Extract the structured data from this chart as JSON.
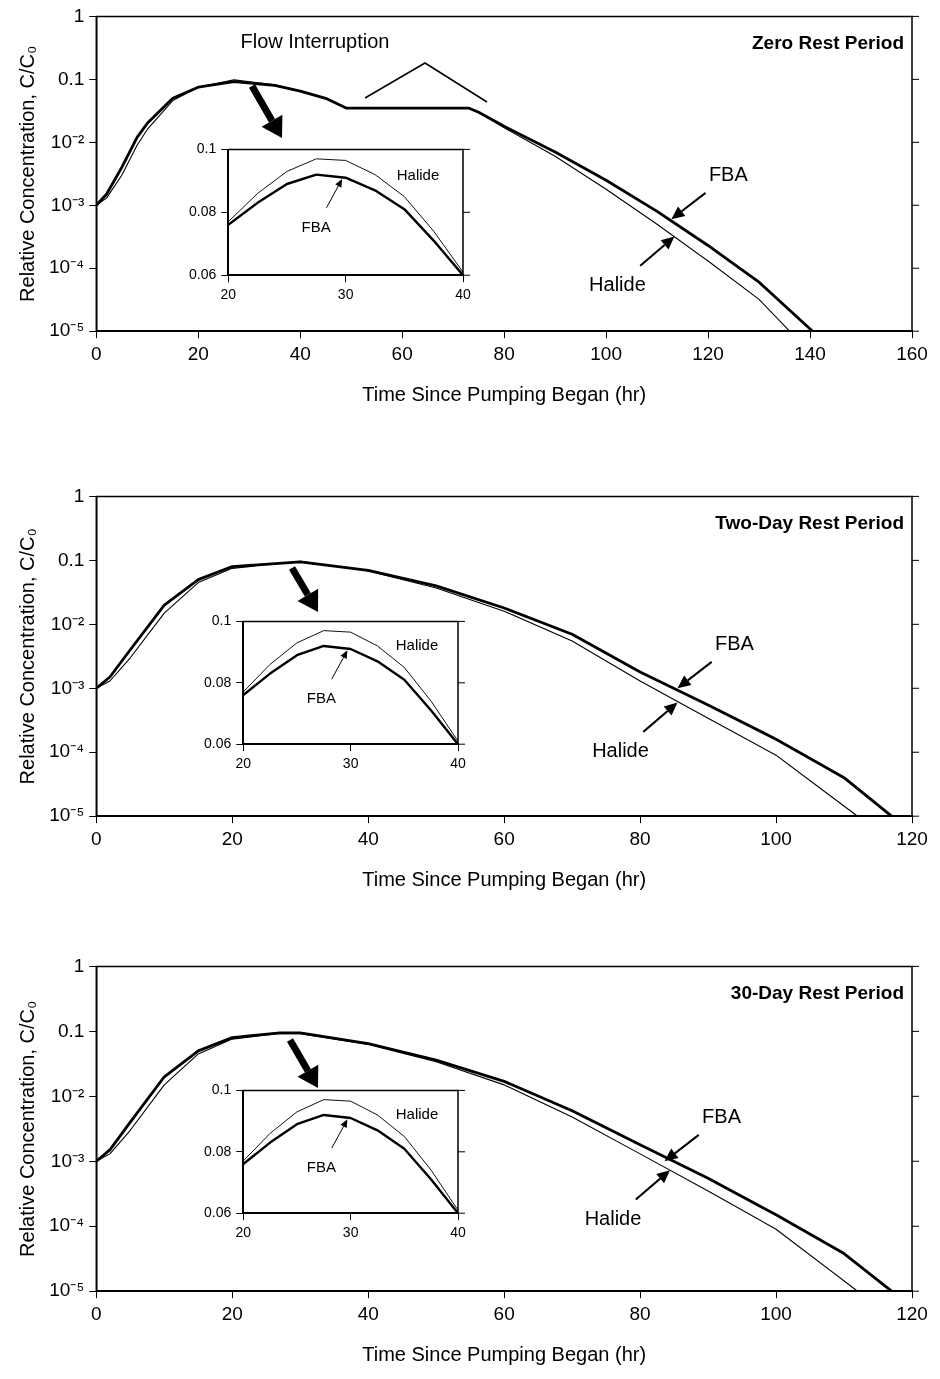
{
  "chart_data": [
    {
      "type": "line",
      "title": "Zero Rest Period",
      "xlabel": "Time Since Pumping Began (hr)",
      "ylabel": "Relative Concentration, C/C₀",
      "log": "y",
      "grid": false,
      "legend": false,
      "xlim": [
        0,
        160
      ],
      "xticks": [
        0,
        20,
        40,
        60,
        80,
        100,
        120,
        140,
        160
      ],
      "ylim": [
        1e-05,
        1
      ],
      "yticks": [
        1,
        0.1,
        {
          "value": 0.01,
          "label": "10⁻²"
        },
        {
          "value": 0.001,
          "label": "10⁻³"
        },
        {
          "value": 0.0001,
          "label": "10⁻⁴"
        },
        {
          "value": 1e-05,
          "label": "10⁻⁵"
        }
      ],
      "series": [
        {
          "color": "#000000",
          "x": [
            0,
            2,
            5,
            8,
            10,
            15,
            20,
            27,
            35,
            40,
            45,
            49,
            73,
            75,
            80,
            90,
            100,
            110,
            120,
            130,
            140.5
          ],
          "values": [
            0.001,
            0.0015,
            0.004,
            0.012,
            0.02,
            0.05,
            0.075,
            0.092,
            0.08,
            0.065,
            0.05,
            0.035,
            0.035,
            0.03,
            0.018,
            0.007,
            0.0025,
            0.0008,
            0.00023,
            6e-05,
            1e-05
          ]
        },
        {
          "color": "#000000",
          "x": [
            0,
            2,
            5,
            8,
            10,
            15,
            20,
            27,
            35,
            40,
            45,
            49,
            73,
            75,
            80,
            90,
            100,
            110,
            120,
            130,
            136
          ],
          "values": [
            0.001,
            0.0013,
            0.003,
            0.009,
            0.016,
            0.046,
            0.075,
            0.098,
            0.082,
            0.066,
            0.05,
            0.035,
            0.035,
            0.03,
            0.017,
            0.006,
            0.0018,
            0.0005,
            0.00013,
            3.2e-05,
            1e-05
          ]
        }
      ],
      "annotations": [
        "Flow Interruption",
        {
          "text": "FBA",
          "x": 112.8,
          "y": 0.0006
        },
        {
          "text": "Halide",
          "x": 113.4,
          "y": 0.00032
        }
      ]
    },
    {
      "type": "line",
      "grid": false,
      "legend": false,
      "xlim": [
        20,
        40
      ],
      "xticks": [
        20,
        30,
        40
      ],
      "ylim": [
        0.06,
        0.1
      ],
      "yticks": [
        0.06,
        0.08,
        0.1
      ],
      "series": [
        {
          "color": "#000000",
          "x": [
            20,
            22.5,
            25,
            27.5,
            30,
            32.5,
            35,
            37.5,
            40
          ],
          "values": [
            0.076,
            0.083,
            0.089,
            0.092,
            0.091,
            0.087,
            0.081,
            0.071,
            0.06
          ]
        },
        {
          "color": "#000000",
          "x": [
            20,
            22.5,
            25,
            27.5,
            30,
            32.5,
            35,
            37.5,
            40
          ],
          "values": [
            0.077,
            0.086,
            0.093,
            0.097,
            0.0965,
            0.092,
            0.085,
            0.074,
            0.061
          ]
        }
      ],
      "annotations": [
        {
          "text": "Halide",
          "x": 36,
          "y": 0.083
        },
        {
          "text": "FBA",
          "x": 29.7,
          "y": 0.0906
        }
      ]
    },
    {
      "type": "line",
      "title": "Two-Day Rest Period",
      "xlabel": "Time Since Pumping Began (hr)",
      "ylabel": "Relative Concentration, C/C₀",
      "log": "y",
      "grid": false,
      "legend": false,
      "xlim": [
        0,
        120
      ],
      "xticks": [
        0,
        20,
        40,
        60,
        80,
        100,
        120
      ],
      "ylim": [
        1e-05,
        1
      ],
      "yticks": [
        1,
        0.1,
        {
          "value": 0.01,
          "label": "10⁻²"
        },
        {
          "value": 0.001,
          "label": "10⁻³"
        },
        {
          "value": 0.0001,
          "label": "10⁻⁴"
        },
        {
          "value": 1e-05,
          "label": "10⁻⁵"
        }
      ],
      "series": [
        {
          "color": "#000000",
          "x": [
            0,
            2,
            5,
            10,
            15,
            20,
            30,
            40,
            50,
            60,
            70,
            80,
            90,
            100,
            110,
            117
          ],
          "values": [
            0.001,
            0.0015,
            0.004,
            0.02,
            0.05,
            0.08,
            0.095,
            0.07,
            0.04,
            0.018,
            0.007,
            0.0018,
            0.00055,
            0.00016,
            4e-05,
            1e-05
          ]
        },
        {
          "color": "#000000",
          "x": [
            0,
            2,
            5,
            10,
            15,
            20,
            30,
            40,
            50,
            60,
            70,
            80,
            90,
            100,
            112
          ],
          "values": [
            0.001,
            0.0013,
            0.003,
            0.015,
            0.045,
            0.075,
            0.097,
            0.068,
            0.037,
            0.016,
            0.0055,
            0.0013,
            0.00034,
            9e-05,
            1e-05
          ]
        }
      ],
      "annotations": [
        {
          "text": "FBA",
          "x": 85.5,
          "y": 0.001
        },
        {
          "text": "Halide",
          "x": 85.5,
          "y": 0.0006
        }
      ]
    },
    {
      "type": "line",
      "grid": false,
      "legend": false,
      "xlim": [
        20,
        40
      ],
      "xticks": [
        20,
        30,
        40
      ],
      "ylim": [
        0.06,
        0.1
      ],
      "yticks": [
        0.06,
        0.08,
        0.1
      ],
      "series": [
        {
          "color": "#000000",
          "x": [
            20,
            22.5,
            25,
            27.5,
            30,
            32.5,
            35,
            37.5,
            40
          ],
          "values": [
            0.076,
            0.083,
            0.089,
            0.092,
            0.091,
            0.087,
            0.081,
            0.071,
            0.06
          ]
        },
        {
          "color": "#000000",
          "x": [
            20,
            22.5,
            25,
            27.5,
            30,
            32.5,
            35,
            37.5,
            40
          ],
          "values": [
            0.077,
            0.086,
            0.093,
            0.097,
            0.0965,
            0.092,
            0.085,
            0.074,
            0.061
          ]
        }
      ],
      "annotations": [
        {
          "text": "Halide",
          "x": 36,
          "y": 0.083
        },
        {
          "text": "FBA",
          "x": 29.7,
          "y": 0.0906
        }
      ]
    },
    {
      "type": "line",
      "title": "30-Day Rest Period",
      "xlabel": "Time Since Pumping Began (hr)",
      "ylabel": "Relative Concentration, C/C₀",
      "log": "y",
      "grid": false,
      "legend": false,
      "xlim": [
        0,
        120
      ],
      "xticks": [
        0,
        20,
        40,
        60,
        80,
        100,
        120
      ],
      "ylim": [
        1e-05,
        1
      ],
      "yticks": [
        1,
        0.1,
        {
          "value": 0.01,
          "label": "10⁻²"
        },
        {
          "value": 0.001,
          "label": "10⁻³"
        },
        {
          "value": 0.0001,
          "label": "10⁻⁴"
        },
        {
          "value": 1e-05,
          "label": "10⁻⁵"
        }
      ],
      "series": [
        {
          "color": "#000000",
          "x": [
            0,
            2,
            5,
            10,
            15,
            20,
            27,
            30,
            40,
            50,
            60,
            70,
            80,
            90,
            100,
            110,
            117
          ],
          "values": [
            0.001,
            0.0015,
            0.004,
            0.02,
            0.05,
            0.08,
            0.095,
            0.095,
            0.065,
            0.036,
            0.017,
            0.006,
            0.0018,
            0.00055,
            0.00015,
            3.8e-05,
            1e-05
          ]
        },
        {
          "color": "#000000",
          "x": [
            0,
            2,
            5,
            10,
            15,
            20,
            27,
            30,
            40,
            50,
            60,
            70,
            80,
            90,
            100,
            112
          ],
          "values": [
            0.001,
            0.0013,
            0.003,
            0.015,
            0.045,
            0.076,
            0.093,
            0.092,
            0.063,
            0.034,
            0.015,
            0.0048,
            0.0013,
            0.00035,
            9e-05,
            1e-05
          ]
        }
      ],
      "annotations": [
        {
          "text": "FBA",
          "x": 83.6,
          "y": 0.001
        },
        {
          "text": "Halide",
          "x": 84.4,
          "y": 0.00073
        }
      ]
    },
    {
      "type": "line",
      "grid": false,
      "legend": false,
      "xlim": [
        20,
        40
      ],
      "xticks": [
        20,
        30,
        40
      ],
      "ylim": [
        0.06,
        0.1
      ],
      "yticks": [
        0.06,
        0.08,
        0.1
      ],
      "series": [
        {
          "color": "#000000",
          "x": [
            20,
            22.5,
            25,
            27.5,
            30,
            32.5,
            35,
            37.5,
            40
          ],
          "values": [
            0.076,
            0.083,
            0.089,
            0.092,
            0.091,
            0.087,
            0.081,
            0.071,
            0.06
          ]
        },
        {
          "color": "#000000",
          "x": [
            20,
            22.5,
            25,
            27.5,
            30,
            32.5,
            35,
            37.5,
            40
          ],
          "values": [
            0.077,
            0.086,
            0.093,
            0.097,
            0.0965,
            0.092,
            0.085,
            0.074,
            0.061
          ]
        }
      ],
      "annotations": [
        {
          "text": "Halide",
          "x": 36,
          "y": 0.083
        },
        {
          "text": "FBA",
          "x": 29.7,
          "y": 0.0906
        }
      ]
    }
  ]
}
